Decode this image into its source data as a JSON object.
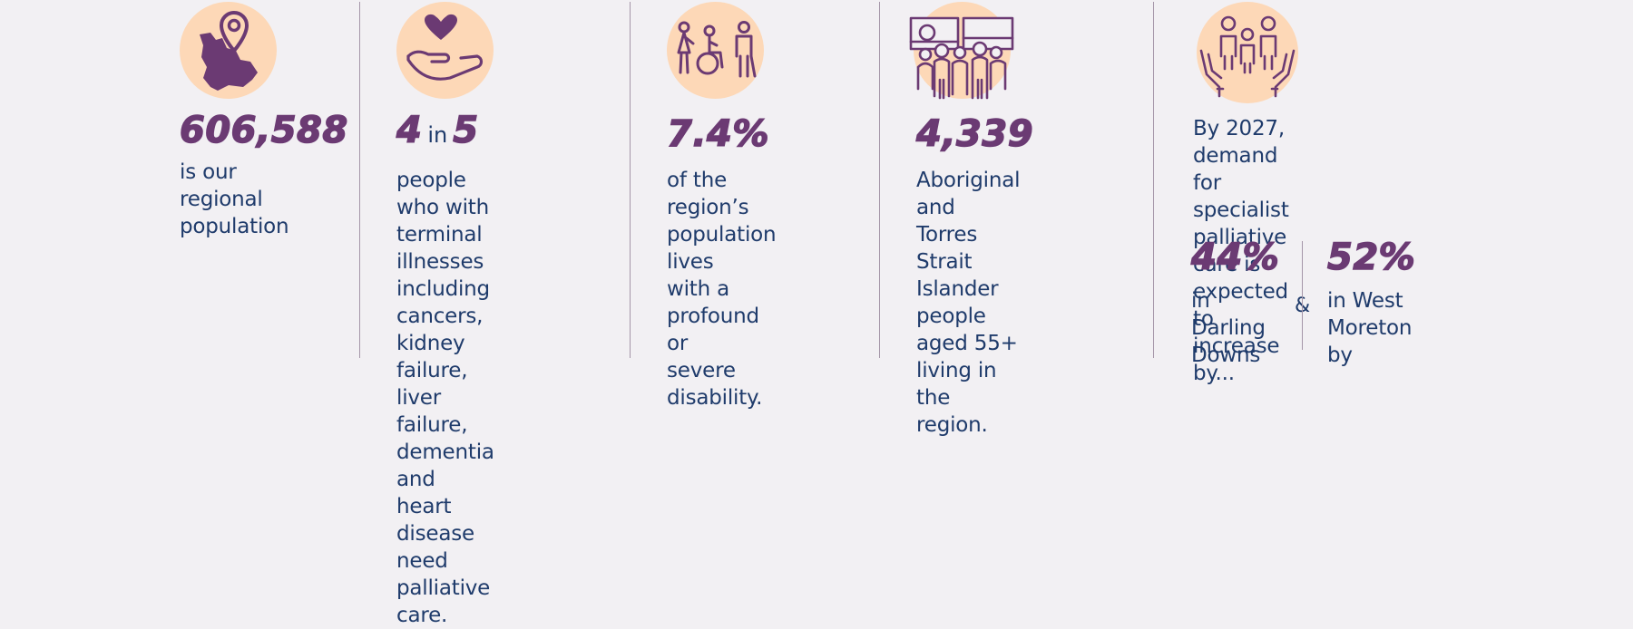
{
  "colors": {
    "background": "#f2f0f3",
    "accent_purple": "#6b3a73",
    "text_navy": "#1f3b6b",
    "circle_peach": "#fdd8b7",
    "divider": "#a596a8"
  },
  "items": [
    {
      "icon": "map-pin-icon",
      "stat": "606,588",
      "text": "is our regional\npopulation"
    },
    {
      "icon": "heart-in-hand-icon",
      "stat_a": "4",
      "stat_joiner": "in",
      "stat_b": "5",
      "text": "people who with\nterminal illnesses\nincluding cancers,\nkidney failure, liver\nfailure, dementia\nand heart disease\nneed palliative care."
    },
    {
      "icon": "accessibility-people-icon",
      "stat": "7.4%",
      "text": "of the region’s\npopulation lives\nwith a profound or\nsevere disability."
    },
    {
      "icon": "community-group-icon",
      "stat": "4,339",
      "text": "Aboriginal and\nTorres Strait Islander\npeople aged 55+\nliving in the region."
    },
    {
      "icon": "care-hands-people-icon",
      "text": "By 2027, demand for\nspecialist palliative\ncare is expected to\nincrease by...",
      "sub": [
        {
          "stat": "44%",
          "text": "in Darling\nDowns"
        },
        {
          "stat": "52%",
          "text": "in West\nMoreton by"
        }
      ],
      "joiner": "&"
    }
  ]
}
